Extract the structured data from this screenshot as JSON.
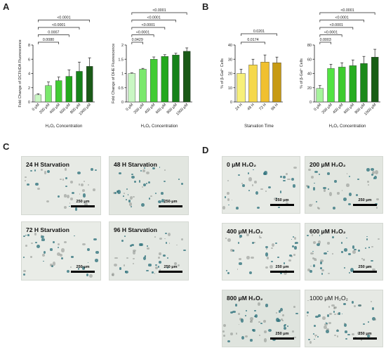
{
  "panels": {
    "A": "A",
    "B": "B",
    "C": "C",
    "D": "D"
  },
  "chart_data": [
    {
      "type": "bar",
      "ylabel": "Fold Change of DCFHDA Fluorescence",
      "xlabel": "H₂O₂ Concentration",
      "categories": [
        "0 μM",
        "200 μM",
        "400 μM",
        "600 μM",
        "800 μM",
        "1000 μM"
      ],
      "values": [
        1.0,
        2.3,
        3.0,
        3.6,
        4.3,
        5.0
      ],
      "errors": [
        0.15,
        0.5,
        0.5,
        0.9,
        1.3,
        1.2
      ],
      "ylim": [
        0,
        8
      ],
      "yticks": [
        0,
        2,
        4,
        6,
        8
      ],
      "colors": [
        "#c9f7c3",
        "#7ae86c",
        "#42cc33",
        "#23a81c",
        "#16821a",
        "#1a5a17"
      ],
      "comparisons": [
        {
          "from": 0,
          "to": 2,
          "label": "0.0080"
        },
        {
          "from": 0,
          "to": 3,
          "label": "0.0007"
        },
        {
          "from": 0,
          "to": 4,
          "label": "<0.0001"
        },
        {
          "from": 0,
          "to": 5,
          "label": "<0.0001"
        }
      ]
    },
    {
      "type": "bar",
      "ylabel": "Fold Change of DHE Fluorescence",
      "xlabel": "H₂O₂ Concentration",
      "categories": [
        "0 μM",
        "200 μM",
        "400 μM",
        "600 μM",
        "800 μM",
        "1000 μM"
      ],
      "values": [
        1.0,
        1.15,
        1.5,
        1.6,
        1.65,
        1.78
      ],
      "errors": [
        0.02,
        0.03,
        0.08,
        0.06,
        0.06,
        0.12
      ],
      "ylim": [
        0,
        2.0
      ],
      "yticks": [
        0.0,
        0.5,
        1.0,
        1.5,
        2.0
      ],
      "colors": [
        "#c9f7c3",
        "#7ae86c",
        "#42cc33",
        "#23a81c",
        "#16821a",
        "#1a5a17"
      ],
      "comparisons": [
        {
          "from": 0,
          "to": 1,
          "label": "0.0429"
        },
        {
          "from": 0,
          "to": 2,
          "label": "<0.0001"
        },
        {
          "from": 0,
          "to": 3,
          "label": "<0.0001"
        },
        {
          "from": 0,
          "to": 4,
          "label": "<0.0001"
        },
        {
          "from": 0,
          "to": 5,
          "label": "<0.0001"
        }
      ]
    },
    {
      "type": "bar",
      "ylabel": "% of β-Gal⁺ Cells",
      "xlabel": "Starvation Time",
      "categories": [
        "24 H",
        "48 H",
        "72 H",
        "96 H"
      ],
      "values": [
        20,
        26,
        28,
        27.5
      ],
      "errors": [
        3,
        4,
        5,
        4
      ],
      "ylim": [
        0,
        40
      ],
      "yticks": [
        0,
        10,
        20,
        30,
        40
      ],
      "colors": [
        "#f7f07a",
        "#f5d84a",
        "#f0c030",
        "#c79a12"
      ],
      "comparisons": [
        {
          "from": 0,
          "to": 2,
          "label": "0.0174"
        },
        {
          "from": 0,
          "to": 3,
          "label": "0.0201"
        }
      ]
    },
    {
      "type": "bar",
      "ylabel": "% of β-Gal⁺ Cells",
      "xlabel": "H₂O₂ Concentration",
      "categories": [
        "0 μM",
        "200 μM",
        "400 μM",
        "600 μM",
        "800 μM",
        "1000 μM"
      ],
      "values": [
        19,
        47,
        49,
        51,
        54,
        63
      ],
      "errors": [
        4,
        6,
        6,
        8,
        10,
        11
      ],
      "ylim": [
        0,
        80
      ],
      "yticks": [
        0,
        20,
        40,
        60,
        80
      ],
      "colors": [
        "#a6f39c",
        "#52e342",
        "#3ecb2f",
        "#28ad20",
        "#1b8a1a",
        "#185e16"
      ],
      "comparisons": [
        {
          "from": 0,
          "to": 1,
          "label": "0.0003"
        },
        {
          "from": 0,
          "to": 2,
          "label": "<0.0001"
        },
        {
          "from": 0,
          "to": 3,
          "label": "<0.0001"
        },
        {
          "from": 0,
          "to": 4,
          "label": "<0.0001"
        },
        {
          "from": 0,
          "to": 5,
          "label": "<0.0001"
        }
      ]
    }
  ],
  "micrographs_c": [
    {
      "label": "24 H Starvation",
      "scale": "250 μm"
    },
    {
      "label": "48 H Starvation",
      "scale": "250 μm"
    },
    {
      "label": "72 H Starvation",
      "scale": "250 μm"
    },
    {
      "label": "96 H Starvation",
      "scale": "250 μm"
    }
  ],
  "micrographs_d": [
    {
      "label": "0 μM H₂O₂",
      "scale": "250 μm"
    },
    {
      "label": "200 μM H₂O₂",
      "scale": "250 μm"
    },
    {
      "label": "400 μM H₂O₂",
      "scale": "250 μm"
    },
    {
      "label": "600 μM H₂O₂",
      "scale": "250 μm"
    },
    {
      "label": "800 μM H₂O₂",
      "scale": "250 μm"
    },
    {
      "label": "1000 μM H₂O₂",
      "scale": "250 μm"
    }
  ]
}
